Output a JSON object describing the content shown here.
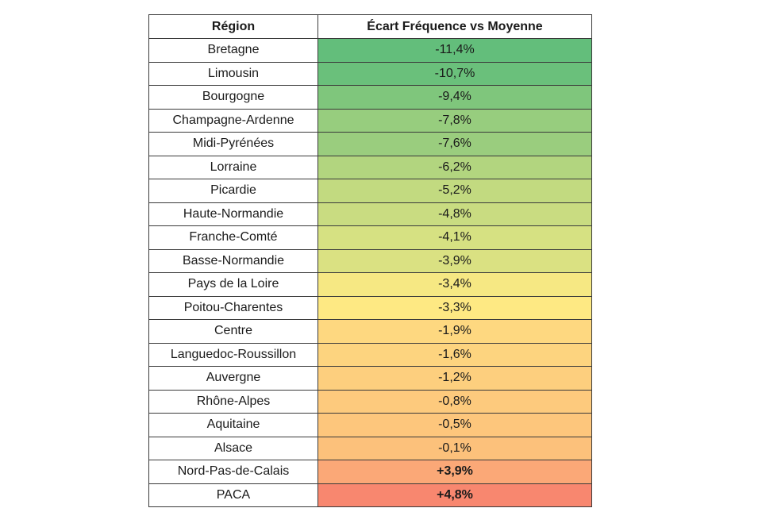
{
  "table": {
    "headers": {
      "region": "Région",
      "value": "Écart Fréquence vs Moyenne"
    },
    "rows": [
      {
        "region": "Bretagne",
        "value": "-11,4%",
        "color": "#63be7b",
        "bold": false
      },
      {
        "region": "Limousin",
        "value": "-10,7%",
        "color": "#6ac07b",
        "bold": false
      },
      {
        "region": "Bourgogne",
        "value": "-9,4%",
        "color": "#7fc67c",
        "bold": false
      },
      {
        "region": "Champagne-Ardenne",
        "value": "-7,8%",
        "color": "#97cd7e",
        "bold": false
      },
      {
        "region": "Midi-Pyrénées",
        "value": "-7,6%",
        "color": "#9acd7e",
        "bold": false
      },
      {
        "region": "Lorraine",
        "value": "-6,2%",
        "color": "#b2d57f",
        "bold": false
      },
      {
        "region": "Picardie",
        "value": "-5,2%",
        "color": "#c2da80",
        "bold": false
      },
      {
        "region": "Haute-Normandie",
        "value": "-4,8%",
        "color": "#c9dc81",
        "bold": false
      },
      {
        "region": "Franche-Comté",
        "value": "-4,1%",
        "color": "#d6e182",
        "bold": false
      },
      {
        "region": "Basse-Normandie",
        "value": "-3,9%",
        "color": "#dae182",
        "bold": false
      },
      {
        "region": "Pays de la Loire",
        "value": "-3,4%",
        "color": "#f6e883",
        "bold": false
      },
      {
        "region": "Poitou-Charentes",
        "value": "-3,3%",
        "color": "#fee983",
        "bold": false
      },
      {
        "region": "Centre",
        "value": "-1,9%",
        "color": "#fed880",
        "bold": false
      },
      {
        "region": "Languedoc-Roussillon",
        "value": "-1,6%",
        "color": "#fdd47f",
        "bold": false
      },
      {
        "region": "Auvergne",
        "value": "-1,2%",
        "color": "#fdcf7e",
        "bold": false
      },
      {
        "region": "Rhône-Alpes",
        "value": "-0,8%",
        "color": "#fdca7d",
        "bold": false
      },
      {
        "region": "Aquitaine",
        "value": "-0,5%",
        "color": "#fdc67c",
        "bold": false
      },
      {
        "region": "Alsace",
        "value": "-0,1%",
        "color": "#fcc17b",
        "bold": false
      },
      {
        "region": "Nord-Pas-de-Calais",
        "value": "+3,9%",
        "color": "#fba877",
        "bold": true
      },
      {
        "region": "PACA",
        "value": "+4,8%",
        "color": "#f8876f",
        "bold": true
      }
    ]
  }
}
